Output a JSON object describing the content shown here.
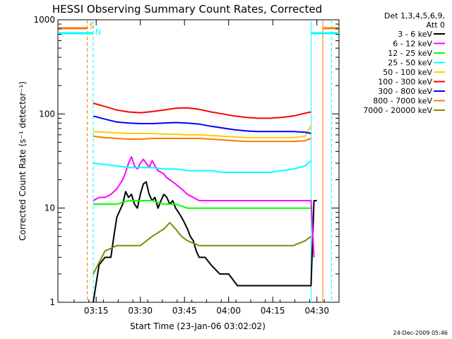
{
  "chart_data": {
    "type": "line",
    "title": "HESSI Observing Summary Count Rates, Corrected",
    "xlabel": "Start Time (23-Jan-06 03:02:02)",
    "ylabel": "Corrected Count Rate (s⁻¹ detector⁻¹)",
    "y_scale": "log",
    "ylim": [
      1,
      1000
    ],
    "xlim": [
      "03:02:02",
      "04:37:30"
    ],
    "x_unit": "minutes",
    "x_ticks": [
      {
        "t": 13,
        "label": "03:15"
      },
      {
        "t": 28,
        "label": "03:30"
      },
      {
        "t": 43,
        "label": "03:45"
      },
      {
        "t": 58,
        "label": "04:00"
      },
      {
        "t": 73,
        "label": "04:15"
      },
      {
        "t": 88,
        "label": "04:30"
      }
    ],
    "y_ticks": [
      {
        "v": 1,
        "label": "1"
      },
      {
        "v": 10,
        "label": "10"
      },
      {
        "v": 100,
        "label": "100"
      },
      {
        "v": 1000,
        "label": "1000"
      }
    ],
    "legend": {
      "header1": "Det 1,3,4,5,6,9,",
      "header2": "Att 0",
      "placement": "right"
    },
    "series": [
      {
        "name": "3 - 6 keV",
        "color": "#000000",
        "t": [
          12,
          14,
          16,
          18,
          19,
          20,
          22,
          23,
          24,
          25,
          26,
          27,
          28,
          29,
          30,
          31,
          32,
          33,
          34,
          35,
          36,
          37,
          38,
          39,
          40,
          41,
          42,
          43,
          44,
          45,
          46,
          47,
          48,
          50,
          52,
          55,
          58,
          61,
          64,
          67,
          70,
          73,
          76,
          79,
          82,
          84,
          85,
          86,
          87,
          88
        ],
        "v": [
          1,
          2.5,
          3,
          3,
          5,
          8,
          11,
          15,
          13,
          14,
          11,
          10,
          14,
          18,
          19,
          14,
          12,
          13,
          10,
          12,
          14,
          13,
          11,
          12,
          10,
          9,
          8,
          7,
          6,
          5,
          4.5,
          3.5,
          3,
          3,
          2.5,
          2,
          2,
          1.5,
          1.5,
          1.5,
          1.5,
          1.5,
          1.5,
          1.5,
          1.5,
          1.5,
          1.5,
          1.5,
          12,
          12
        ]
      },
      {
        "name": "6 - 12 keV",
        "color": "#ff00ff",
        "t": [
          12,
          14,
          16,
          18,
          20,
          22,
          23,
          24,
          25,
          26,
          27,
          28,
          29,
          30,
          31,
          32,
          33,
          34,
          35,
          36,
          37,
          38,
          40,
          42,
          44,
          46,
          48,
          50,
          55,
          60,
          65,
          70,
          75,
          80,
          85,
          86,
          87
        ],
        "v": [
          12,
          13,
          13,
          14,
          16,
          20,
          24,
          30,
          35,
          28,
          26,
          30,
          33,
          30,
          27,
          32,
          28,
          25,
          24,
          23,
          21,
          20,
          18,
          16,
          14,
          13,
          12,
          12,
          12,
          12,
          12,
          12,
          12,
          12,
          12,
          12,
          3
        ]
      },
      {
        "name": "12 - 25 keV",
        "color": "#00ff00",
        "t": [
          12,
          16,
          20,
          24,
          28,
          32,
          36,
          40,
          44,
          48,
          52,
          56,
          60,
          64,
          68,
          72,
          76,
          80,
          84,
          86
        ],
        "v": [
          11,
          11,
          11,
          12,
          12,
          12,
          11,
          11,
          10,
          10,
          10,
          10,
          10,
          10,
          10,
          10,
          10,
          10,
          10,
          10
        ]
      },
      {
        "name": "25 - 50 keV",
        "color": "#00ffff",
        "t": [
          12,
          16,
          20,
          24,
          28,
          32,
          36,
          40,
          44,
          48,
          52,
          56,
          60,
          64,
          68,
          72,
          76,
          80,
          84,
          86
        ],
        "v": [
          30,
          29,
          28,
          27,
          27,
          27,
          26,
          26,
          25,
          25,
          25,
          24,
          24,
          24,
          24,
          24,
          25,
          26,
          28,
          32
        ]
      },
      {
        "name": "50 - 100 keV",
        "color": "#ffcc00",
        "t": [
          12,
          16,
          20,
          24,
          28,
          32,
          36,
          40,
          44,
          48,
          52,
          56,
          60,
          64,
          68,
          72,
          76,
          80,
          84,
          86
        ],
        "v": [
          65,
          64,
          63,
          62,
          62,
          62,
          61,
          61,
          60,
          60,
          59,
          58,
          57,
          56,
          56,
          56,
          56,
          56,
          58,
          75
        ]
      },
      {
        "name": "100 - 300 keV",
        "color": "#ff0000",
        "t": [
          12,
          16,
          20,
          24,
          28,
          32,
          36,
          40,
          44,
          48,
          52,
          56,
          60,
          64,
          68,
          72,
          76,
          80,
          84,
          86
        ],
        "v": [
          130,
          120,
          110,
          105,
          103,
          106,
          110,
          115,
          116,
          112,
          105,
          100,
          95,
          92,
          90,
          90,
          92,
          95,
          102,
          105
        ]
      },
      {
        "name": "300 - 800 keV",
        "color": "#0000ff",
        "t": [
          12,
          16,
          20,
          24,
          28,
          32,
          36,
          40,
          44,
          48,
          52,
          56,
          60,
          64,
          68,
          72,
          76,
          80,
          84,
          86
        ],
        "v": [
          95,
          88,
          82,
          80,
          79,
          79,
          80,
          81,
          80,
          78,
          74,
          71,
          68,
          66,
          65,
          65,
          65,
          65,
          64,
          62
        ]
      },
      {
        "name": "800 - 7000 keV",
        "color": "#ff7700",
        "t": [
          12,
          16,
          20,
          24,
          28,
          32,
          36,
          40,
          44,
          48,
          52,
          56,
          60,
          64,
          68,
          72,
          76,
          80,
          84,
          86
        ],
        "v": [
          58,
          56,
          55,
          54,
          54,
          55,
          55,
          55,
          55,
          55,
          54,
          53,
          52,
          51,
          51,
          51,
          51,
          51,
          52,
          55
        ]
      },
      {
        "name": "7000 - 20000 keV",
        "color": "#888800",
        "t": [
          12,
          16,
          20,
          24,
          28,
          32,
          36,
          38,
          40,
          42,
          44,
          48,
          52,
          56,
          60,
          64,
          68,
          72,
          76,
          80,
          84,
          86
        ],
        "v": [
          2,
          3.5,
          4,
          4,
          4,
          5,
          6,
          7,
          6,
          5,
          4.5,
          4,
          4,
          4,
          4,
          4,
          4,
          4,
          4,
          4,
          4.5,
          5
        ]
      }
    ],
    "markers": [
      {
        "t": 10,
        "label": "S",
        "color": "#ff7700",
        "style": "dashed"
      },
      {
        "t": 12,
        "label": "N",
        "color": "#00ffff",
        "style": "dashed"
      },
      {
        "t": 86,
        "label": "",
        "color": "#00ffff",
        "style": "solid"
      },
      {
        "t": 90,
        "label": "",
        "color": "#ff7700",
        "style": "solid"
      },
      {
        "t": 93,
        "label": "",
        "color": "#00ffff",
        "style": "dashed"
      }
    ]
  },
  "footer": {
    "timestamp": "24-Dec-2009 05:46"
  }
}
